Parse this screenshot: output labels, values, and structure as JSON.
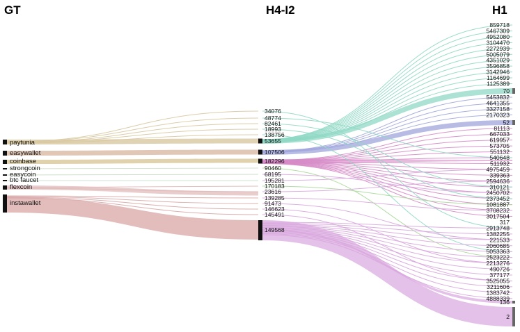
{
  "headers": {
    "gt": "GT",
    "mid": "H4-I2",
    "right": "H1"
  },
  "colors": {
    "paytunia": "#d8c8a0",
    "easywallet": "#d9b9a4",
    "coinbase": "#d9c79a",
    "strongcoin": "#cfe0c8",
    "easycoin": "#c9dcc4",
    "btc_faucet": "#c9e0d0",
    "flexcoin": "#e0b8b8",
    "instawallet": "#d9a6a6",
    "teal": "#8fd8c4",
    "blue": "#a0a6dc",
    "magenta": "#d68ac6",
    "purple": "#d8a6de",
    "green": "#a9d89a"
  },
  "gt_nodes": [
    "paytunia",
    "easywallet",
    "coinbase",
    "strongcoin",
    "easycoin",
    "btc faucet",
    "flexcoin",
    "instawallet"
  ],
  "mid_labels": [
    "34076",
    "48774",
    "82461",
    "18993",
    "138756",
    "53655",
    "107506",
    "182296",
    "90460",
    "68195",
    "195281",
    "170183",
    "23616",
    "139285",
    "91473",
    "146623",
    "145491",
    "149568"
  ],
  "right_labels": [
    "859718",
    "5467309",
    "4952080",
    "3104470",
    "2272939",
    "5005079",
    "4351029",
    "3596858",
    "3142946",
    "1164699",
    "1125389",
    "70",
    "5453832",
    "4641355",
    "3327158",
    "2170323",
    "52",
    "81113",
    "667033",
    "619957",
    "573705",
    "551132",
    "540648",
    "511932",
    "4975459",
    "339363",
    "2594636",
    "310121",
    "2450702",
    "2373452",
    "1081887",
    "3708232",
    "3017504",
    "317",
    "2913748",
    "1382255",
    "221533",
    "2060685",
    "5053363",
    "2523222",
    "2213276",
    "490726",
    "377177",
    "3525055",
    "3211606",
    "1383742",
    "4888339",
    "136",
    "2"
  ]
}
